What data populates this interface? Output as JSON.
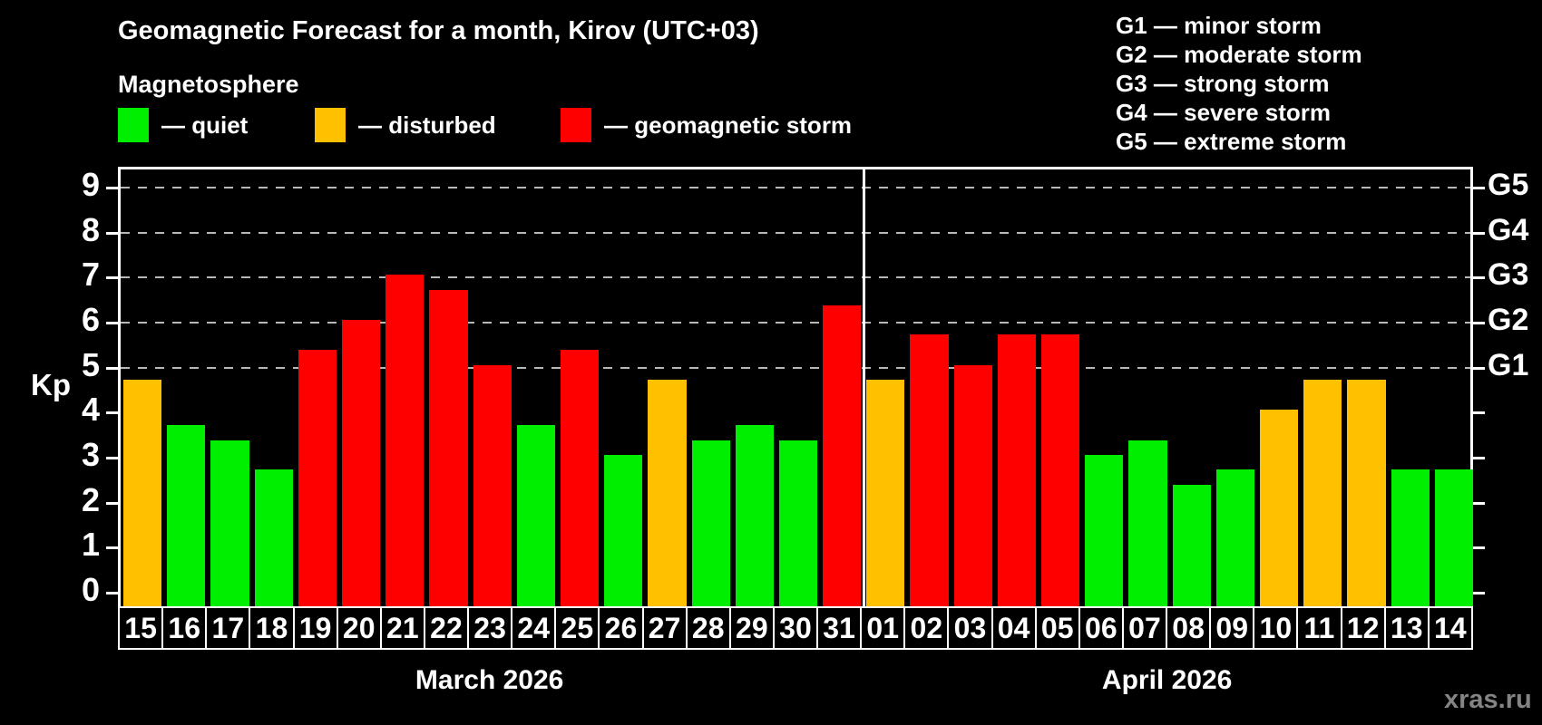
{
  "title": "Geomagnetic Forecast for a month, Kirov (UTC+03)",
  "subtitle": "Magnetosphere",
  "legend": {
    "items": [
      {
        "name": "quiet",
        "label": "— quiet",
        "color": "#00ee00"
      },
      {
        "name": "disturbed",
        "label": "— disturbed",
        "color": "#ffc000"
      },
      {
        "name": "storm",
        "label": "— geomagnetic storm",
        "color": "#ff0000"
      }
    ]
  },
  "g_legend": {
    "items": [
      {
        "label": "G1 — minor storm"
      },
      {
        "label": "G2 — moderate storm"
      },
      {
        "label": "G3 — strong storm"
      },
      {
        "label": "G4 — severe storm"
      },
      {
        "label": "G5 — extreme storm"
      }
    ]
  },
  "watermark": "xras.ru",
  "chart_data": {
    "type": "bar",
    "title": "Geomagnetic Forecast for a month, Kirov (UTC+03)",
    "subtitle": "Magnetosphere",
    "ylabel": "Kp",
    "ylim": [
      0,
      9
    ],
    "yticks": [
      0,
      1,
      2,
      3,
      4,
      5,
      6,
      7,
      8,
      9
    ],
    "gridlines_at_kp": [
      5,
      6,
      7,
      8,
      9
    ],
    "grid": "dashed",
    "legend_position": "top-left",
    "right_axis_labels": [
      {
        "kp": 5,
        "label": "G1"
      },
      {
        "kp": 6,
        "label": "G2"
      },
      {
        "kp": 7,
        "label": "G3"
      },
      {
        "kp": 8,
        "label": "G4"
      },
      {
        "kp": 9,
        "label": "G5"
      }
    ],
    "level_colors": {
      "quiet": "#00ee00",
      "disturbed": "#ffc000",
      "storm": "#ff0000"
    },
    "months": [
      {
        "label": "March 2026",
        "days": [
          {
            "day": "15",
            "kp": 4.67,
            "level": "disturbed"
          },
          {
            "day": "16",
            "kp": 3.67,
            "level": "quiet"
          },
          {
            "day": "17",
            "kp": 3.33,
            "level": "quiet"
          },
          {
            "day": "18",
            "kp": 2.67,
            "level": "quiet"
          },
          {
            "day": "19",
            "kp": 5.33,
            "level": "storm"
          },
          {
            "day": "20",
            "kp": 6.0,
            "level": "storm"
          },
          {
            "day": "21",
            "kp": 7.0,
            "level": "storm"
          },
          {
            "day": "22",
            "kp": 6.67,
            "level": "storm"
          },
          {
            "day": "23",
            "kp": 5.0,
            "level": "storm"
          },
          {
            "day": "24",
            "kp": 3.67,
            "level": "quiet"
          },
          {
            "day": "25",
            "kp": 5.33,
            "level": "storm"
          },
          {
            "day": "26",
            "kp": 3.0,
            "level": "quiet"
          },
          {
            "day": "27",
            "kp": 4.67,
            "level": "disturbed"
          },
          {
            "day": "28",
            "kp": 3.33,
            "level": "quiet"
          },
          {
            "day": "29",
            "kp": 3.67,
            "level": "quiet"
          },
          {
            "day": "30",
            "kp": 3.33,
            "level": "quiet"
          },
          {
            "day": "31",
            "kp": 6.33,
            "level": "storm"
          }
        ]
      },
      {
        "label": "April 2026",
        "days": [
          {
            "day": "01",
            "kp": 4.67,
            "level": "disturbed"
          },
          {
            "day": "02",
            "kp": 5.67,
            "level": "storm"
          },
          {
            "day": "03",
            "kp": 5.0,
            "level": "storm"
          },
          {
            "day": "04",
            "kp": 5.67,
            "level": "storm"
          },
          {
            "day": "05",
            "kp": 5.67,
            "level": "storm"
          },
          {
            "day": "06",
            "kp": 3.0,
            "level": "quiet"
          },
          {
            "day": "07",
            "kp": 3.33,
            "level": "quiet"
          },
          {
            "day": "08",
            "kp": 2.33,
            "level": "quiet"
          },
          {
            "day": "09",
            "kp": 2.67,
            "level": "quiet"
          },
          {
            "day": "10",
            "kp": 4.0,
            "level": "disturbed"
          },
          {
            "day": "11",
            "kp": 4.67,
            "level": "disturbed"
          },
          {
            "day": "12",
            "kp": 4.67,
            "level": "disturbed"
          },
          {
            "day": "13",
            "kp": 2.67,
            "level": "quiet"
          },
          {
            "day": "14",
            "kp": 2.67,
            "level": "quiet"
          }
        ]
      }
    ]
  }
}
